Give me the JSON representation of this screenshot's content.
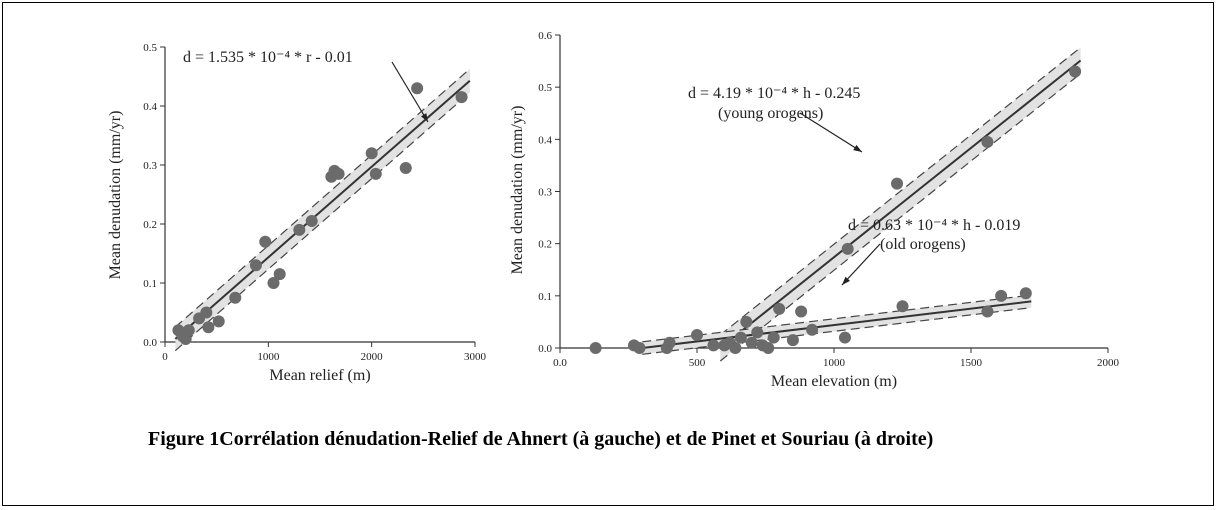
{
  "caption": "Figure 1Corrélation dénudation-Relief de Ahnert (à gauche) et de Pinet et Souriau (à droite)",
  "chart_data": [
    {
      "type": "scatter",
      "xlabel": "Mean relief (m)",
      "ylabel": "Mean denudation (mm/yr)",
      "xlim": [
        0,
        3000
      ],
      "xticks": [
        0,
        1000,
        2000,
        3000
      ],
      "ylim": [
        0,
        0.5
      ],
      "yticks": [
        {
          "value": 0,
          "label": "0.0"
        },
        0.1,
        0.2,
        0.3,
        0.4,
        0.5
      ],
      "color": "#6b6b6b",
      "x": [
        130,
        170,
        200,
        230,
        330,
        400,
        420,
        520,
        680,
        880,
        970,
        1050,
        1110,
        1300,
        1420,
        1610,
        1640,
        1680,
        2000,
        2040,
        2330,
        2440,
        2870
      ],
      "values": [
        0.02,
        0.01,
        0.005,
        0.02,
        0.04,
        0.05,
        0.025,
        0.035,
        0.075,
        0.13,
        0.17,
        0.1,
        0.115,
        0.19,
        0.205,
        0.28,
        0.29,
        0.285,
        0.32,
        0.285,
        0.295,
        0.43,
        0.415
      ],
      "fits": [
        {
          "slope": 0.0001535,
          "intercept": -0.01,
          "x_range": [
            100,
            2950
          ],
          "band": 0.02
        }
      ],
      "annotations": [
        [
          "d =  1.535  * 10⁻⁴ * r - 0.01"
        ]
      ]
    },
    {
      "type": "scatter",
      "xlabel": "Mean elevation (m)",
      "ylabel": "Mean denudation (mm/yr)",
      "xlim": [
        0,
        2000
      ],
      "xticks": [
        {
          "value": 0,
          "label": "0.0"
        },
        500,
        1000,
        1500,
        2000
      ],
      "ylim": [
        0,
        0.6
      ],
      "yticks": [
        {
          "value": 0,
          "label": "0.0"
        },
        0.1,
        0.2,
        0.3,
        0.4,
        0.5,
        0.6
      ],
      "color": "#6b6b6b",
      "x": [
        130,
        270,
        290,
        400,
        390,
        500,
        560,
        600,
        620,
        640,
        660,
        680,
        700,
        720,
        740,
        760,
        780,
        800,
        850,
        880,
        920,
        1040,
        1050,
        1230,
        1250,
        1560,
        1560,
        1610,
        1700,
        1880
      ],
      "values": [
        0,
        0.005,
        0,
        0.01,
        0,
        0.025,
        0.005,
        0.005,
        0.01,
        0,
        0.02,
        0.05,
        0.01,
        0.03,
        0.005,
        0,
        0.02,
        0.075,
        0.015,
        0.07,
        0.035,
        0.02,
        0.19,
        0.315,
        0.08,
        0.395,
        0.07,
        0.1,
        0.105,
        0.53
      ],
      "fits": [
        {
          "slope": 0.000419,
          "intercept": -0.245,
          "x_range": [
            585,
            1900
          ],
          "band": 0.025
        },
        {
          "slope": 6.3e-05,
          "intercept": -0.019,
          "x_range": [
            300,
            1720
          ],
          "band": 0.012
        }
      ],
      "annotations": [
        [
          "d = 4.19 * 10⁻⁴ * h - 0.245",
          "(young orogens)"
        ],
        [
          "d = 0.63 * 10⁻⁴ * h - 0.019",
          "(old orogens)"
        ]
      ]
    }
  ]
}
